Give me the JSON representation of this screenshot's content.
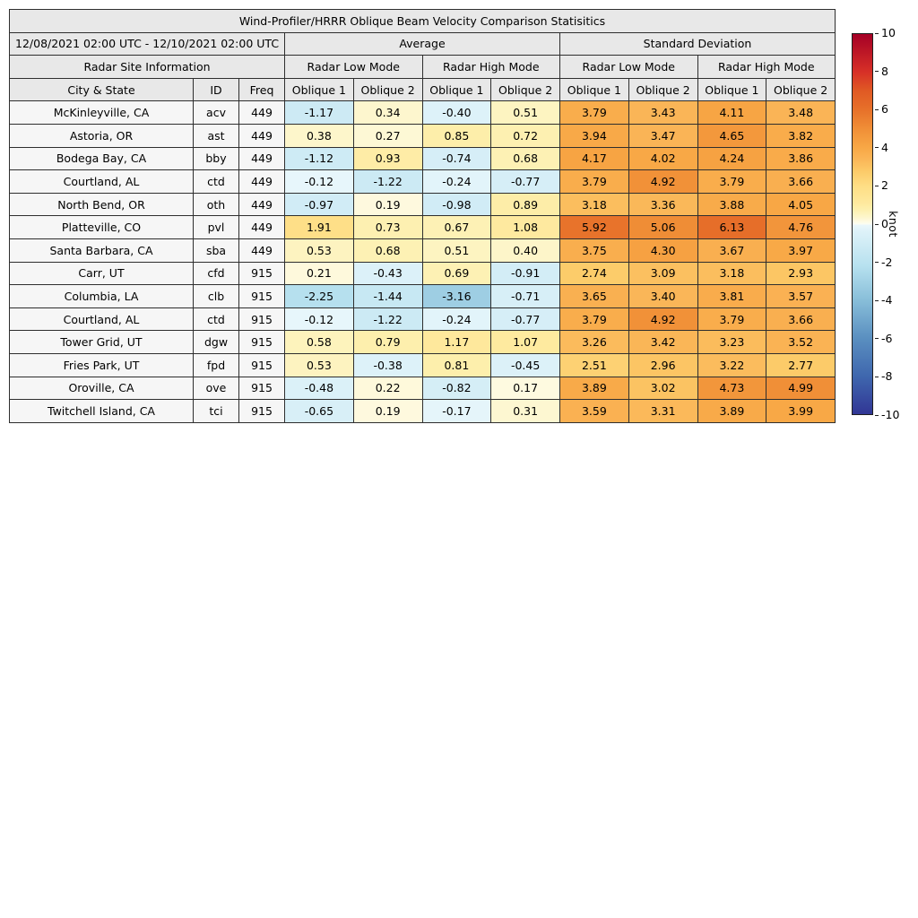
{
  "header": {
    "date_range": "12/08/2021 02:00 UTC - 12/10/2021 02:00 UTC",
    "group_average": "Average",
    "group_std": "Standard Deviation",
    "site_info": "Radar Site Information",
    "low_mode": "Radar Low Mode",
    "high_mode": "Radar High Mode",
    "col_city": "City & State",
    "col_id": "ID",
    "col_freq": "Freq",
    "oblique1": "Oblique 1",
    "oblique2": "Oblique 2"
  },
  "chart_data": {
    "type": "table",
    "title": "Wind-Profiler/HRRR Oblique Beam Velocity Comparison Statisitics",
    "date_range": "12/08/2021 02:00 UTC - 12/10/2021 02:00 UTC",
    "column_groups": [
      "Radar Site Information",
      "Average - Radar Low Mode",
      "Average - Radar High Mode",
      "Standard Deviation - Radar Low Mode",
      "Standard Deviation - Radar High Mode"
    ],
    "columns": [
      "City & State",
      "ID",
      "Freq",
      "Oblique 1",
      "Oblique 2",
      "Oblique 1",
      "Oblique 2",
      "Oblique 1",
      "Oblique 2",
      "Oblique 1",
      "Oblique 2"
    ],
    "rows": [
      {
        "city": "McKinleyville, CA",
        "id": "acv",
        "freq": "449",
        "values": [
          "-1.17",
          "0.34",
          "-0.40",
          "0.51",
          "3.79",
          "3.43",
          "4.11",
          "3.48"
        ]
      },
      {
        "city": "Astoria, OR",
        "id": "ast",
        "freq": "449",
        "values": [
          "0.38",
          "0.27",
          "0.85",
          "0.72",
          "3.94",
          "3.47",
          "4.65",
          "3.82"
        ]
      },
      {
        "city": "Bodega Bay, CA",
        "id": "bby",
        "freq": "449",
        "values": [
          "-1.12",
          "0.93",
          "-0.74",
          "0.68",
          "4.17",
          "4.02",
          "4.24",
          "3.86"
        ]
      },
      {
        "city": "Courtland, AL",
        "id": "ctd",
        "freq": "449",
        "values": [
          "-0.12",
          "-1.22",
          "-0.24",
          "-0.77",
          "3.79",
          "4.92",
          "3.79",
          "3.66"
        ]
      },
      {
        "city": "North Bend, OR",
        "id": "oth",
        "freq": "449",
        "values": [
          "-0.97",
          "0.19",
          "-0.98",
          "0.89",
          "3.18",
          "3.36",
          "3.88",
          "4.05"
        ]
      },
      {
        "city": "Platteville, CO",
        "id": "pvl",
        "freq": "449",
        "values": [
          "1.91",
          "0.73",
          "0.67",
          "1.08",
          "5.92",
          "5.06",
          "6.13",
          "4.76"
        ]
      },
      {
        "city": "Santa Barbara, CA",
        "id": "sba",
        "freq": "449",
        "values": [
          "0.53",
          "0.68",
          "0.51",
          "0.40",
          "3.75",
          "4.30",
          "3.67",
          "3.97"
        ]
      },
      {
        "city": "Carr, UT",
        "id": "cfd",
        "freq": "915",
        "values": [
          "0.21",
          "-0.43",
          "0.69",
          "-0.91",
          "2.74",
          "3.09",
          "3.18",
          "2.93"
        ]
      },
      {
        "city": "Columbia, LA",
        "id": "clb",
        "freq": "915",
        "values": [
          "-2.25",
          "-1.44",
          "-3.16",
          "-0.71",
          "3.65",
          "3.40",
          "3.81",
          "3.57"
        ]
      },
      {
        "city": "Courtland, AL",
        "id": "ctd",
        "freq": "915",
        "values": [
          "-0.12",
          "-1.22",
          "-0.24",
          "-0.77",
          "3.79",
          "4.92",
          "3.79",
          "3.66"
        ]
      },
      {
        "city": "Tower Grid, UT",
        "id": "dgw",
        "freq": "915",
        "values": [
          "0.58",
          "0.79",
          "1.17",
          "1.07",
          "3.26",
          "3.42",
          "3.23",
          "3.52"
        ]
      },
      {
        "city": "Fries Park, UT",
        "id": "fpd",
        "freq": "915",
        "values": [
          "0.53",
          "-0.38",
          "0.81",
          "-0.45",
          "2.51",
          "2.96",
          "3.22",
          "2.77"
        ]
      },
      {
        "city": "Oroville, CA",
        "id": "ove",
        "freq": "915",
        "values": [
          "-0.48",
          "0.22",
          "-0.82",
          "0.17",
          "3.89",
          "3.02",
          "4.73",
          "4.99"
        ]
      },
      {
        "city": "Twitchell Island, CA",
        "id": "tci",
        "freq": "915",
        "values": [
          "-0.65",
          "0.19",
          "-0.17",
          "0.31",
          "3.59",
          "3.31",
          "3.89",
          "3.99"
        ]
      }
    ],
    "colorbar": {
      "label": "knot",
      "min": -10,
      "max": 10,
      "ticks": [
        10,
        8,
        6,
        4,
        2,
        0,
        -2,
        -4,
        -6,
        -8,
        -10
      ],
      "stops": [
        [
          -10,
          "#313695"
        ],
        [
          -8,
          "#3f67ae"
        ],
        [
          -6,
          "#5a8fc0"
        ],
        [
          -4,
          "#88bed9"
        ],
        [
          -2.2,
          "#b7e1ef"
        ],
        [
          -1.4,
          "#c8e8f3"
        ],
        [
          -0.9,
          "#d3edf6"
        ],
        [
          -0.35,
          "#def2f9"
        ],
        [
          -0.05,
          "#eaf7fb"
        ],
        [
          0,
          "#fcfdf3"
        ],
        [
          0.1,
          "#fefbe7"
        ],
        [
          0.35,
          "#fdf6cd"
        ],
        [
          0.75,
          "#fdf0af"
        ],
        [
          1.1,
          "#fee99e"
        ],
        [
          2,
          "#fede85"
        ],
        [
          2.8,
          "#fcca68"
        ],
        [
          3.5,
          "#fab355"
        ],
        [
          4,
          "#f8a846"
        ],
        [
          5,
          "#f08f37"
        ],
        [
          6,
          "#e7712a"
        ],
        [
          7,
          "#e05a24"
        ],
        [
          8,
          "#d73027"
        ],
        [
          10,
          "#a50026"
        ]
      ]
    }
  }
}
